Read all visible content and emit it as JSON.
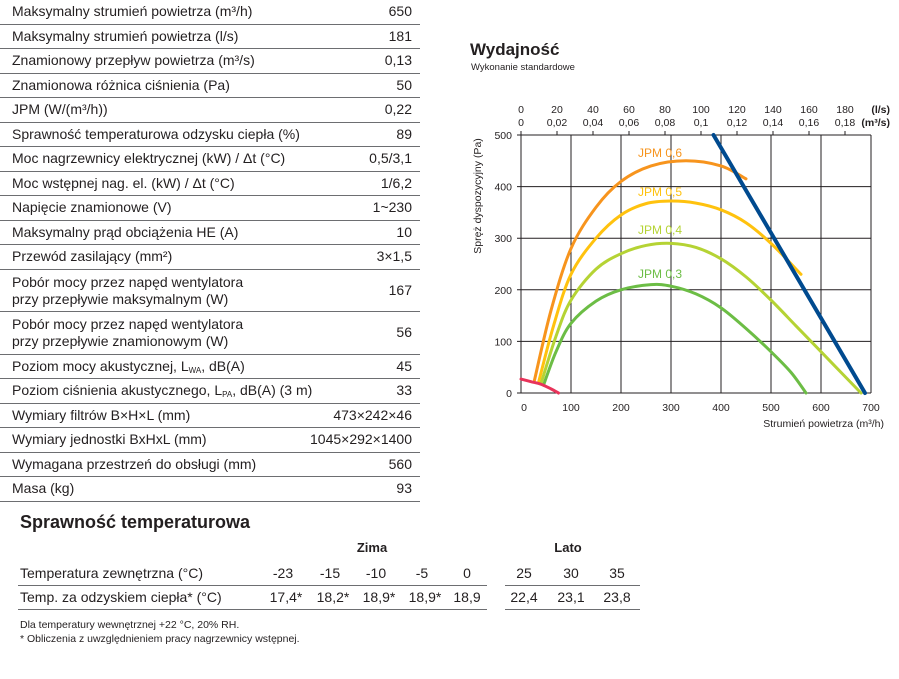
{
  "spec_table": [
    {
      "label": [
        "Maksymalny strumień powietrza (m³/h)"
      ],
      "value": "650"
    },
    {
      "label": [
        "Maksymalny strumień powietrza (l/s)"
      ],
      "value": "181"
    },
    {
      "label": [
        "Znamionowy przepływ powietrza (m³/s)"
      ],
      "value": "0,13"
    },
    {
      "label": [
        "Znamionowa różnica ciśnienia (Pa)"
      ],
      "value": "50"
    },
    {
      "label": [
        "JPM (W/(m³/h))"
      ],
      "value": "0,22"
    },
    {
      "label": [
        "Sprawność temperaturowa odzysku ciepła (%)"
      ],
      "value": "89"
    },
    {
      "label": [
        "Moc nagrzewnicy elektrycznej (kW) / Δt (°C)"
      ],
      "value": "0,5/3,1"
    },
    {
      "label": [
        "Moc wstępnej nag. el. (kW) / Δt (°C)"
      ],
      "value": "1/6,2"
    },
    {
      "label": [
        "Napięcie znamionowe (V)"
      ],
      "value": "1~230"
    },
    {
      "label": [
        "Maksymalny prąd obciążenia HE (A)"
      ],
      "value": "10"
    },
    {
      "label": [
        "Przewód zasilający (mm²)"
      ],
      "value": "3×1,5"
    },
    {
      "label": [
        "Pobór mocy przez napęd wentylatora",
        "przy przepływie maksymalnym (W)"
      ],
      "value": "167"
    },
    {
      "label": [
        "Pobór mocy przez napęd wentylatora",
        "przy przepływie znamionowym (W)"
      ],
      "value": "56"
    },
    {
      "label": [
        "Poziom mocy akustycznej, L"
      ],
      "sub": "WA",
      "after": ", dB(A)",
      "value": "45"
    },
    {
      "label": [
        "Poziom ciśnienia akustycznego, L"
      ],
      "sub": "PA",
      "after": ", dB(A) (3 m)",
      "value": "33"
    },
    {
      "label": [
        "Wymiary filtrów B×H×L (mm)"
      ],
      "value": "473×242×46"
    },
    {
      "label": [
        "Wymiary jednostki BxHxL (mm)"
      ],
      "value": "1045×292×1400"
    },
    {
      "label": [
        "Wymagana przestrzeń do obsługi (mm)"
      ],
      "value": "560"
    },
    {
      "label": [
        "Masa (kg)"
      ],
      "value": "93"
    }
  ],
  "chart_data": {
    "type": "line",
    "title": "Wydajność",
    "subtitle": "Wykonanie standardowe",
    "xlabel": "Strumień powietrza (m³/h)",
    "ylabel": "Spręż dyspozycyjny (Pa)",
    "xlim": [
      0,
      700
    ],
    "ylim": [
      0,
      500
    ],
    "xticks": [
      "0",
      "100",
      "200",
      "300",
      "400",
      "500",
      "600",
      "700"
    ],
    "yticks": [
      "0",
      "100",
      "200",
      "300",
      "400",
      "500"
    ],
    "top_axis": {
      "unit_ls": "(l/s)",
      "unit_m3s": "(m³/s)",
      "ls_ticks": [
        "0",
        "20",
        "40",
        "60",
        "80",
        "100",
        "120",
        "140",
        "160",
        "180"
      ],
      "m3s_ticks": [
        "0",
        "0,02",
        "0,04",
        "0,06",
        "0,08",
        "0,1",
        "0,12",
        "0,14",
        "0,16",
        "0,18"
      ]
    },
    "grid": true,
    "series": [
      {
        "name": "JPM 0,6",
        "color": "#f7941d",
        "points": [
          [
            27,
            25
          ],
          [
            60,
            160
          ],
          [
            100,
            280
          ],
          [
            150,
            360
          ],
          [
            200,
            410
          ],
          [
            260,
            440
          ],
          [
            330,
            450
          ],
          [
            400,
            440
          ],
          [
            450,
            415
          ]
        ]
      },
      {
        "name": "JPM 0,5",
        "color": "#ffc20e",
        "points": [
          [
            35,
            20
          ],
          [
            65,
            130
          ],
          [
            100,
            230
          ],
          [
            150,
            300
          ],
          [
            200,
            345
          ],
          [
            250,
            367
          ],
          [
            300,
            372
          ],
          [
            350,
            368
          ],
          [
            400,
            355
          ],
          [
            450,
            330
          ],
          [
            500,
            290
          ],
          [
            560,
            230
          ]
        ]
      },
      {
        "name": "JPM 0,4",
        "color": "#b5d334",
        "points": [
          [
            40,
            18
          ],
          [
            70,
            110
          ],
          [
            100,
            180
          ],
          [
            150,
            240
          ],
          [
            200,
            270
          ],
          [
            250,
            286
          ],
          [
            300,
            290
          ],
          [
            350,
            282
          ],
          [
            400,
            260
          ],
          [
            450,
            225
          ],
          [
            500,
            180
          ],
          [
            550,
            130
          ],
          [
            600,
            80
          ],
          [
            640,
            40
          ],
          [
            680,
            0
          ]
        ]
      },
      {
        "name": "JPM 0,3",
        "color": "#6cbd45",
        "points": [
          [
            45,
            15
          ],
          [
            70,
            80
          ],
          [
            100,
            135
          ],
          [
            150,
            178
          ],
          [
            200,
            200
          ],
          [
            260,
            210
          ],
          [
            300,
            207
          ],
          [
            350,
            192
          ],
          [
            400,
            165
          ],
          [
            450,
            125
          ],
          [
            500,
            80
          ],
          [
            540,
            40
          ],
          [
            570,
            0
          ]
        ]
      },
      {
        "color": "#004a8f",
        "points": [
          [
            385,
            500
          ],
          [
            688,
            0
          ]
        ]
      },
      {
        "color": "#e8335a",
        "points": [
          [
            0,
            27
          ],
          [
            20,
            22
          ],
          [
            40,
            17
          ],
          [
            60,
            8
          ],
          [
            75,
            0
          ]
        ]
      }
    ]
  },
  "efficiency": {
    "title": "Sprawność temperaturowa",
    "groups": [
      "Zima",
      "Lato"
    ],
    "rows": [
      {
        "label": "Temperatura zewnętrzna (°C)",
        "values": [
          "-23",
          "-15",
          "-10",
          "-5",
          "0",
          "25",
          "30",
          "35"
        ]
      },
      {
        "label": "Temp. za odzyskiem ciepła* (°C)",
        "values": [
          "17,4*",
          "18,2*",
          "18,9*",
          "18,9*",
          "18,9",
          "22,4",
          "23,1",
          "23,8"
        ]
      }
    ],
    "notes": [
      "Dla temperatury wewnętrznej +22 °C, 20% RH.",
      "* Obliczenia z uwzględnieniem pracy nagrzewnicy wstępnej."
    ]
  }
}
